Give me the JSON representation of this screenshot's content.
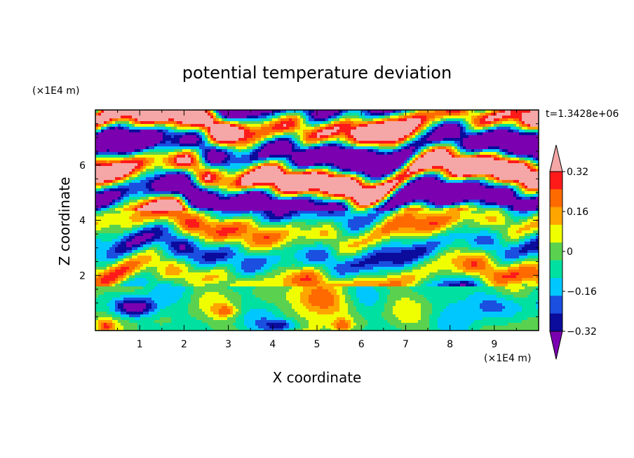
{
  "chart_data": {
    "type": "heatmap",
    "title": "potential temperature deviation",
    "xlabel": "X coordinate",
    "ylabel": "Z coordinate",
    "x_unit": "(×1E4 m)",
    "y_unit": "(×1E4 m)",
    "time_label": "t=1.3428e+06",
    "xlim": [
      0,
      10
    ],
    "ylim": [
      0,
      8
    ],
    "x_ticks": [
      "1",
      "2",
      "3",
      "4",
      "5",
      "6",
      "7",
      "8",
      "9"
    ],
    "y_ticks": [
      "2",
      "4",
      "6"
    ],
    "colorbar": {
      "levels": [
        -0.4,
        -0.32,
        -0.24,
        -0.16,
        -0.08,
        0.0,
        0.08,
        0.16,
        0.24,
        0.32,
        0.4
      ],
      "tick_labels": [
        "0.32",
        "0.16",
        "0",
        "−0.16",
        "−0.32"
      ],
      "colors": [
        "#7a00b0",
        "#0b0b9c",
        "#1a4fe0",
        "#00c8ff",
        "#00e0a0",
        "#5ad250",
        "#f0ff00",
        "#ffa500",
        "#ff6a00",
        "#ff1a1a",
        "#f5a6a6"
      ],
      "extend": "both"
    }
  }
}
